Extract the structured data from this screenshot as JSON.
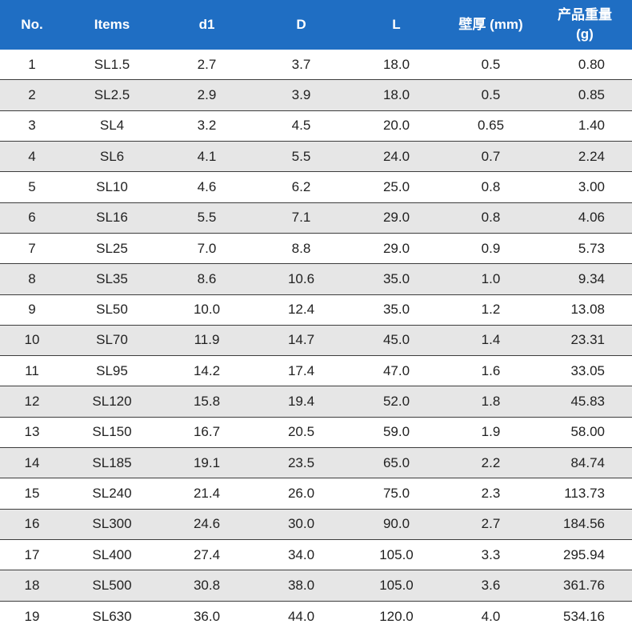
{
  "table": {
    "headers": [
      "No.",
      "Items",
      "d1",
      "D",
      "L",
      "壁厚 (mm)",
      "产品重量 (g)"
    ],
    "rows": [
      [
        "1",
        "SL1.5",
        "2.7",
        "3.7",
        "18.0",
        "0.5",
        "0.80"
      ],
      [
        "2",
        "SL2.5",
        "2.9",
        "3.9",
        "18.0",
        "0.5",
        "0.85"
      ],
      [
        "3",
        "SL4",
        "3.2",
        "4.5",
        "20.0",
        "0.65",
        "1.40"
      ],
      [
        "4",
        "SL6",
        "4.1",
        "5.5",
        "24.0",
        "0.7",
        "2.24"
      ],
      [
        "5",
        "SL10",
        "4.6",
        "6.2",
        "25.0",
        "0.8",
        "3.00"
      ],
      [
        "6",
        "SL16",
        "5.5",
        "7.1",
        "29.0",
        "0.8",
        "4.06"
      ],
      [
        "7",
        "SL25",
        "7.0",
        "8.8",
        "29.0",
        "0.9",
        "5.73"
      ],
      [
        "8",
        "SL35",
        "8.6",
        "10.6",
        "35.0",
        "1.0",
        "9.34"
      ],
      [
        "9",
        "SL50",
        "10.0",
        "12.4",
        "35.0",
        "1.2",
        "13.08"
      ],
      [
        "10",
        "SL70",
        "11.9",
        "14.7",
        "45.0",
        "1.4",
        "23.31"
      ],
      [
        "11",
        "SL95",
        "14.2",
        "17.4",
        "47.0",
        "1.6",
        "33.05"
      ],
      [
        "12",
        "SL120",
        "15.8",
        "19.4",
        "52.0",
        "1.8",
        "45.83"
      ],
      [
        "13",
        "SL150",
        "16.7",
        "20.5",
        "59.0",
        "1.9",
        "58.00"
      ],
      [
        "14",
        "SL185",
        "19.1",
        "23.5",
        "65.0",
        "2.2",
        "84.74"
      ],
      [
        "15",
        "SL240",
        "21.4",
        "26.0",
        "75.0",
        "2.3",
        "113.73"
      ],
      [
        "16",
        "SL300",
        "24.6",
        "30.0",
        "90.0",
        "2.7",
        "184.56"
      ],
      [
        "17",
        "SL400",
        "27.4",
        "34.0",
        "105.0",
        "3.3",
        "295.94"
      ],
      [
        "18",
        "SL500",
        "30.8",
        "38.0",
        "105.0",
        "3.6",
        "361.76"
      ],
      [
        "19",
        "SL630",
        "36.0",
        "44.0",
        "120.0",
        "4.0",
        "534.16"
      ]
    ]
  },
  "colors": {
    "header_bg": "#1f6ec3",
    "header_text": "#ffffff",
    "row_alt_bg": "#e6e6e6",
    "row_bg": "#ffffff",
    "row_divider": "#3c3c3c"
  }
}
